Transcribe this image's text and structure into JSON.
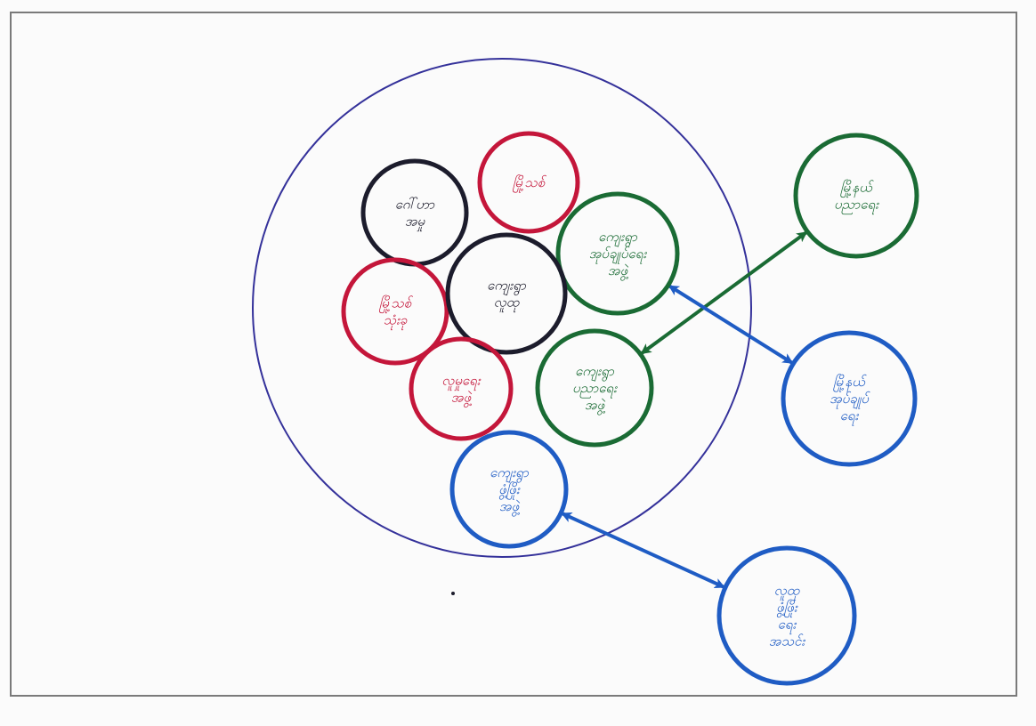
{
  "diagram": {
    "colors": {
      "paper": "#fbfbfb",
      "frame": "#7a7a7a",
      "outer_ring": "#34319a",
      "red": "#c4163a",
      "black": "#1c1c2c",
      "green": "#1a6b34",
      "blue": "#1f5cc4"
    },
    "nodes": [
      {
        "id": "n-black-top",
        "color": "black",
        "text": "ဂေါ်ဟာ အမှု"
      },
      {
        "id": "n-red-top",
        "color": "red",
        "text": "မြို့သစ်"
      },
      {
        "id": "n-green-top",
        "color": "green",
        "text": "ကျေးရွာ အုပ်ချုပ်ရေး အဖွဲ့"
      },
      {
        "id": "n-red-left",
        "color": "red",
        "text": "မြို့သစ် သုံးခု"
      },
      {
        "id": "n-center",
        "color": "black",
        "text": "ကျေးရွာ လူထု"
      },
      {
        "id": "n-red-bottom",
        "color": "red",
        "text": "လူမှုရေး အဖွဲ့"
      },
      {
        "id": "n-green-mid",
        "color": "green",
        "text": "ကျေးရွာ ပညာရေး အဖွဲ့"
      },
      {
        "id": "n-blue-inner",
        "color": "blue",
        "text": "ကျေးရွာ ဖွံ့ဖြိုး အဖွဲ့"
      },
      {
        "id": "n-green-right",
        "color": "green",
        "text": "မြို့နယ် ပညာရေး"
      },
      {
        "id": "n-blue-right",
        "color": "blue",
        "text": "မြို့နယ် အုပ်ချုပ် ရေး"
      },
      {
        "id": "n-blue-bottom",
        "color": "blue",
        "text": "လူထု ဖွံ့ဖြိုး ရေး အသင်း"
      }
    ],
    "edges": [
      {
        "from": "n-green-right",
        "to": "n-green-mid",
        "color": "green"
      },
      {
        "from": "n-green-top",
        "to": "n-blue-right",
        "color": "blue"
      },
      {
        "from": "n-blue-inner",
        "to": "n-blue-bottom",
        "color": "blue"
      }
    ]
  }
}
